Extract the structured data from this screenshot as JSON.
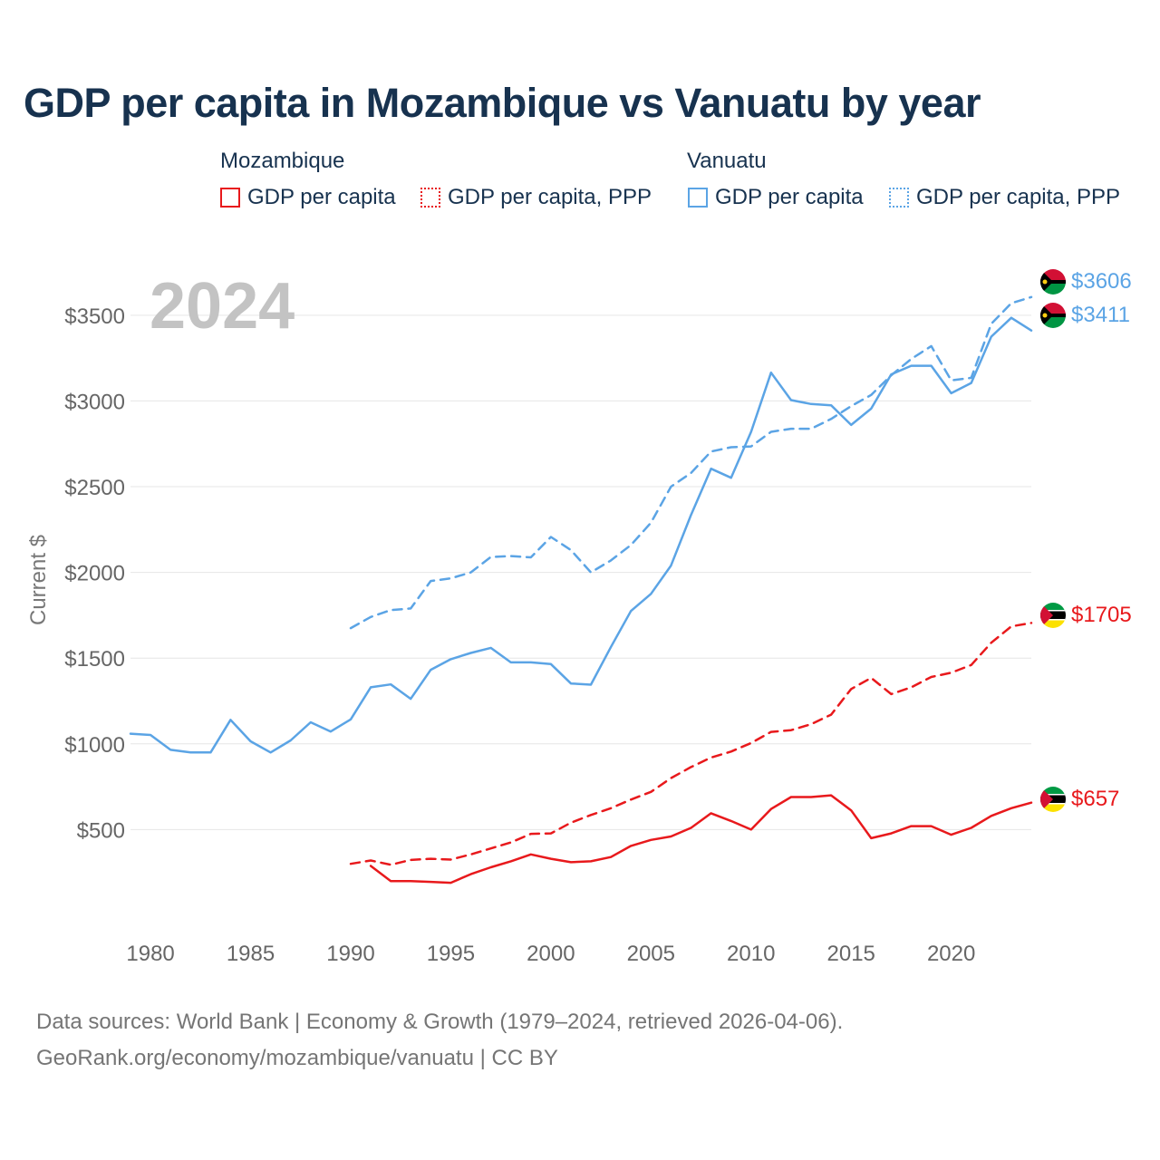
{
  "title": "GDP per capita in Mozambique vs Vanuatu by year",
  "legend": {
    "groups": [
      {
        "country": "Mozambique",
        "items": [
          "GDP per capita",
          "GDP per capita, PPP"
        ]
      },
      {
        "country": "Vanuatu",
        "items": [
          "GDP per capita",
          "GDP per capita, PPP"
        ]
      }
    ]
  },
  "colors": {
    "mozambique": "#e8191c",
    "vanuatu": "#5ba4e5",
    "grid": "#e6e6e6",
    "axis_text": "#666666",
    "year_watermark": "#c3c3c3"
  },
  "year_watermark": "2024",
  "end_labels": {
    "van_ppp": "$3606",
    "van_gdp": "$3411",
    "moz_ppp": "$1705",
    "moz_gdp": "$657"
  },
  "sources": {
    "line1": "Data sources: World Bank | Economy & Growth (1979–2024, retrieved 2026-04-06).",
    "line2": "GeoRank.org/economy/mozambique/vanuatu | CC BY"
  },
  "chart_data": {
    "type": "line",
    "title": "GDP per capita in Mozambique vs Vanuatu by year",
    "xlabel": "",
    "ylabel": "Current $",
    "xlim": [
      1979,
      2024
    ],
    "ylim": [
      0,
      3700
    ],
    "x_ticks": [
      1980,
      1985,
      1990,
      1995,
      2000,
      2005,
      2010,
      2015,
      2020
    ],
    "y_ticks": [
      500,
      1000,
      1500,
      2000,
      2500,
      3000,
      3500
    ],
    "y_tick_labels": [
      "$500",
      "$1000",
      "$1500",
      "$2000",
      "$2500",
      "$3000",
      "$3500"
    ],
    "series": [
      {
        "name": "Vanuatu GDP per capita",
        "country": "Vanuatu",
        "style": "solid",
        "x": [
          1979,
          1980,
          1981,
          1982,
          1983,
          1984,
          1985,
          1986,
          1987,
          1988,
          1989,
          1990,
          1991,
          1992,
          1993,
          1994,
          1995,
          1996,
          1997,
          1998,
          1999,
          2000,
          2001,
          2002,
          2003,
          2004,
          2005,
          2006,
          2007,
          2008,
          2009,
          2010,
          2011,
          2012,
          2013,
          2014,
          2015,
          2016,
          2017,
          2018,
          2019,
          2020,
          2021,
          2022,
          2023,
          2024
        ],
        "values": [
          1059,
          1052,
          965,
          950,
          950,
          1140,
          1015,
          950,
          1020,
          1126,
          1072,
          1143,
          1330,
          1347,
          1263,
          1432,
          1494,
          1530,
          1560,
          1475,
          1475,
          1465,
          1352,
          1345,
          1565,
          1775,
          1875,
          2040,
          2335,
          2605,
          2552,
          2820,
          3165,
          3005,
          2982,
          2975,
          2860,
          2955,
          3155,
          3205,
          3205,
          3045,
          3105,
          3375,
          3485,
          3411
        ]
      },
      {
        "name": "Vanuatu GDP per capita, PPP",
        "country": "Vanuatu",
        "style": "dashed",
        "x": [
          1990,
          1991,
          1992,
          1993,
          1994,
          1995,
          1996,
          1997,
          1998,
          1999,
          2000,
          2001,
          2002,
          2003,
          2004,
          2005,
          2006,
          2007,
          2008,
          2009,
          2010,
          2011,
          2012,
          2013,
          2014,
          2015,
          2016,
          2017,
          2018,
          2019,
          2020,
          2021,
          2022,
          2023,
          2024
        ],
        "values": [
          1675,
          1740,
          1780,
          1790,
          1950,
          1965,
          2000,
          2090,
          2095,
          2088,
          2207,
          2130,
          2000,
          2070,
          2160,
          2290,
          2500,
          2580,
          2705,
          2730,
          2735,
          2820,
          2838,
          2838,
          2895,
          2970,
          3035,
          3150,
          3245,
          3320,
          3120,
          3135,
          3450,
          3570,
          3606
        ]
      },
      {
        "name": "Mozambique GDP per capita",
        "country": "Mozambique",
        "style": "solid",
        "x": [
          1991,
          1992,
          1993,
          1994,
          1995,
          1996,
          1997,
          1998,
          1999,
          2000,
          2001,
          2002,
          2003,
          2004,
          2005,
          2006,
          2007,
          2008,
          2009,
          2010,
          2011,
          2012,
          2013,
          2014,
          2015,
          2016,
          2017,
          2018,
          2019,
          2020,
          2021,
          2022,
          2023,
          2024
        ],
        "values": [
          288,
          200,
          200,
          195,
          190,
          240,
          280,
          315,
          355,
          330,
          310,
          315,
          340,
          405,
          440,
          460,
          510,
          595,
          550,
          500,
          620,
          690,
          690,
          700,
          612,
          450,
          478,
          520,
          520,
          470,
          510,
          580,
          625,
          657
        ]
      },
      {
        "name": "Mozambique GDP per capita, PPP",
        "country": "Mozambique",
        "style": "dashed",
        "x": [
          1990,
          1991,
          1992,
          1993,
          1994,
          1995,
          1996,
          1997,
          1998,
          1999,
          2000,
          2001,
          2002,
          2003,
          2004,
          2005,
          2006,
          2007,
          2008,
          2009,
          2010,
          2011,
          2012,
          2013,
          2014,
          2015,
          2016,
          2017,
          2018,
          2019,
          2020,
          2021,
          2022,
          2023,
          2024
        ],
        "values": [
          300,
          320,
          295,
          323,
          330,
          325,
          355,
          390,
          425,
          475,
          478,
          540,
          585,
          625,
          675,
          720,
          800,
          865,
          920,
          955,
          1005,
          1070,
          1080,
          1115,
          1170,
          1320,
          1385,
          1290,
          1330,
          1390,
          1415,
          1460,
          1590,
          1685,
          1705
        ]
      }
    ]
  }
}
